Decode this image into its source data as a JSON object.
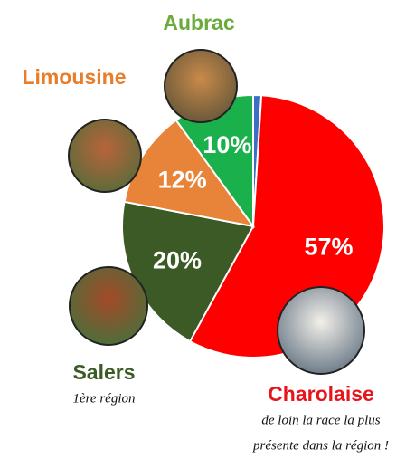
{
  "chart_data": {
    "type": "pie",
    "categories": [
      null,
      "Charolaise",
      "Salers",
      "Limousine",
      "Aubrac"
    ],
    "values": [
      1,
      57,
      20,
      12,
      10
    ],
    "value_labels": [
      null,
      "57%",
      "20%",
      "12%",
      "10%"
    ],
    "colors": [
      "#3a6fc4",
      "#ff0000",
      "#3b5a26",
      "#e8843a",
      "#1ab04c"
    ],
    "label_colors": [
      null,
      "#e8141c",
      "#3c5a24",
      "#e87d2a",
      "#6aab3a"
    ],
    "annotations": {
      "Salers": [
        "1ère région"
      ],
      "Charolaise": [
        "de loin la race la plus",
        "présente dans la région !"
      ]
    }
  }
}
